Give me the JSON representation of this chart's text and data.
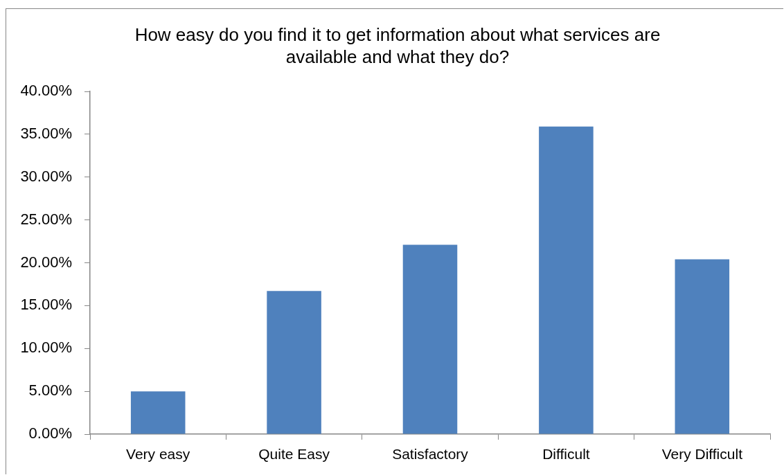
{
  "chart_data": {
    "type": "bar",
    "title": "How easy do you find it to get information about what services are available and what they do?",
    "categories": [
      "Very easy",
      "Quite Easy",
      "Satisfactory",
      "Difficult",
      "Very Difficult"
    ],
    "values": [
      5.0,
      16.7,
      22.1,
      35.9,
      20.4
    ],
    "color": "#4f81bd",
    "ylim": [
      0,
      40
    ],
    "yticks": [
      {
        "value": 0,
        "label": "0.00%"
      },
      {
        "value": 5,
        "label": "5.00%"
      },
      {
        "value": 10,
        "label": "10.00%"
      },
      {
        "value": 15,
        "label": "15.00%"
      },
      {
        "value": 20,
        "label": "20.00%"
      },
      {
        "value": 25,
        "label": "25.00%"
      },
      {
        "value": 30,
        "label": "30.00%"
      },
      {
        "value": 35,
        "label": "35.00%"
      },
      {
        "value": 40,
        "label": "40.00%"
      }
    ]
  }
}
